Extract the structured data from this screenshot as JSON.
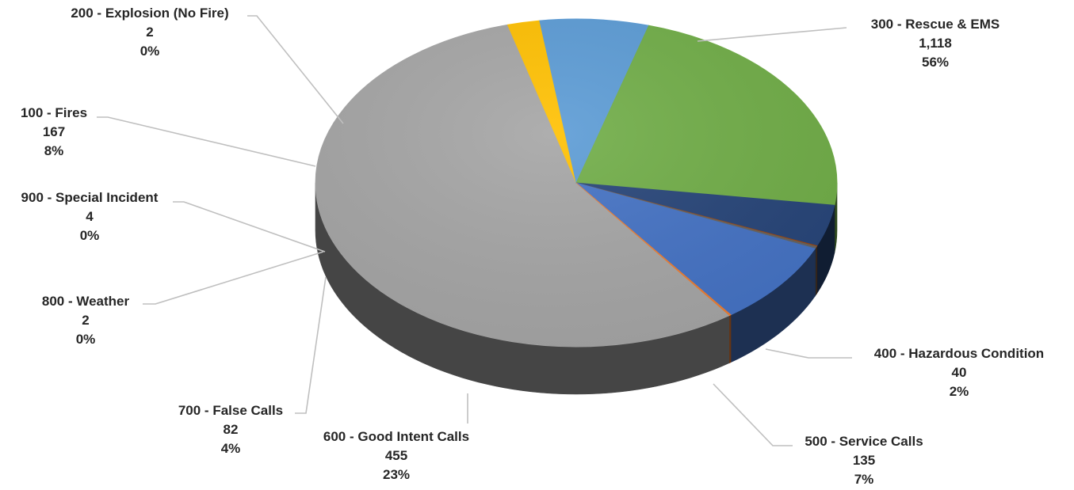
{
  "chart_data": {
    "type": "pie",
    "title": "",
    "slices": [
      {
        "label": "300 - Rescue & EMS",
        "count": "1,118",
        "percent": "56%",
        "value": 1118,
        "color": "#a5a5a5"
      },
      {
        "label": "400 - Hazardous Condition",
        "count": "40",
        "percent": "2%",
        "value": 40,
        "color": "#ffc000"
      },
      {
        "label": "500 - Service Calls",
        "count": "135",
        "percent": "7%",
        "value": 135,
        "color": "#5b9bd5"
      },
      {
        "label": "600 - Good Intent Calls",
        "count": "455",
        "percent": "23%",
        "value": 455,
        "color": "#70ad47"
      },
      {
        "label": "700 - False Calls",
        "count": "82",
        "percent": "4%",
        "value": 82,
        "color": "#264478"
      },
      {
        "label": "800 - Weather",
        "count": "2",
        "percent": "0%",
        "value": 2,
        "color": "#9e480e"
      },
      {
        "label": "900 - Special Incident",
        "count": "4",
        "percent": "0%",
        "value": 4,
        "color": "#636363"
      },
      {
        "label": "100 - Fires",
        "count": "167",
        "percent": "8%",
        "value": 167,
        "color": "#4472c4"
      },
      {
        "label": "200 - Explosion (No Fire)",
        "count": "2",
        "percent": "0%",
        "value": 2,
        "color": "#ed7d31"
      }
    ],
    "legend": "none"
  }
}
